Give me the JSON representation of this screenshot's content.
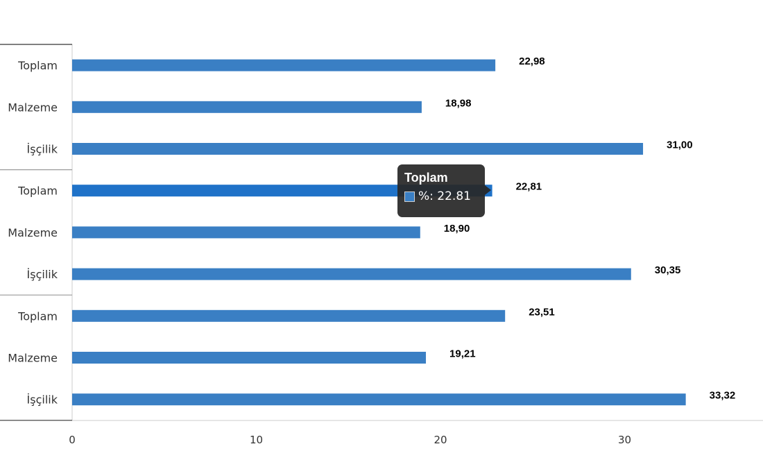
{
  "chart_data": {
    "type": "bar",
    "orientation": "horizontal",
    "categories": [
      "Toplam",
      "Malzeme",
      "İşçilik",
      "Toplam",
      "Malzeme",
      "İşçilik",
      "Toplam",
      "Malzeme",
      "İşçilik"
    ],
    "series": [
      {
        "values": [
          22.98,
          18.98,
          31.0,
          22.81,
          18.9,
          30.35,
          23.51,
          19.21,
          33.32
        ]
      }
    ],
    "value_labels": [
      "22,98",
      "18,98",
      "31,00",
      "22,81",
      "18,90",
      "30,35",
      "23,51",
      "19,21",
      "33,32"
    ],
    "x_ticks": [
      0,
      10,
      20,
      30
    ],
    "xlim": [
      0,
      37.5
    ],
    "grid": false,
    "bar_color": "#3a7fc4",
    "highlight_color": "#1f72c8",
    "highlight_index": 3,
    "group_size": 3
  },
  "tooltip": {
    "title": "Toplam",
    "series_label": "%: 22.81"
  }
}
